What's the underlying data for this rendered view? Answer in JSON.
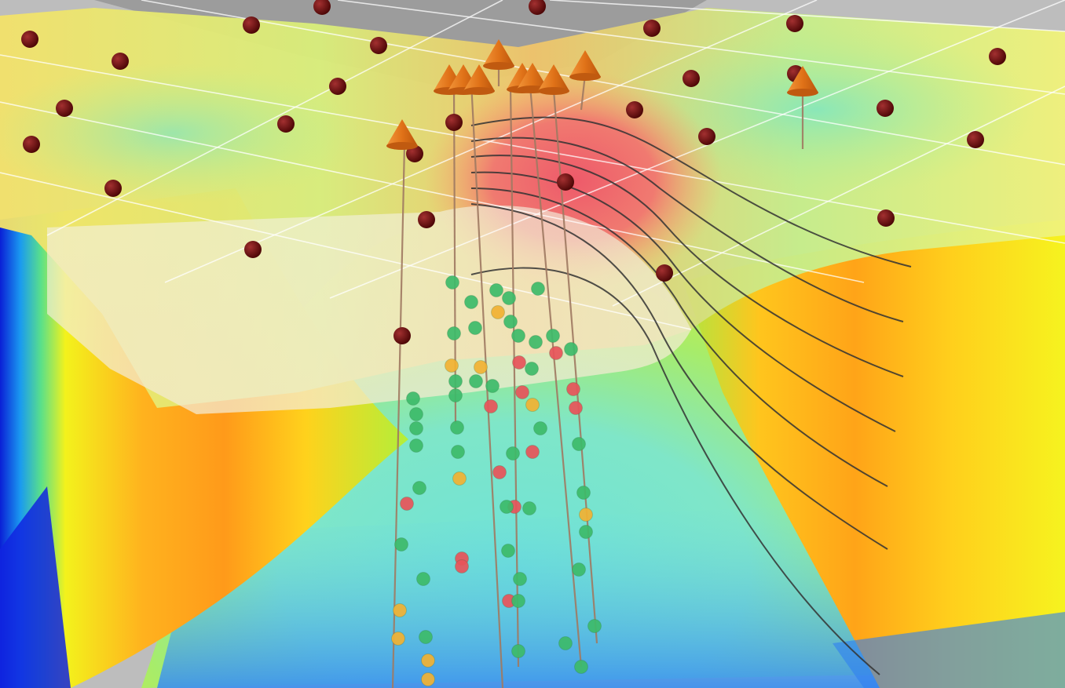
{
  "scene": {
    "colors": {
      "background": "#bdbdbd",
      "survey_points": "#5a0a0a",
      "well_markers": "#e0761c",
      "well_traces": "#a07a62",
      "contours": "#333333",
      "gridlines": "#ffffff",
      "samples": [
        "#3dbb6a",
        "#e8545a",
        "#f2b233"
      ]
    },
    "icons": [
      "survey-point-icon",
      "wellhead-cone-icon",
      "sample-bead-icon"
    ]
  }
}
